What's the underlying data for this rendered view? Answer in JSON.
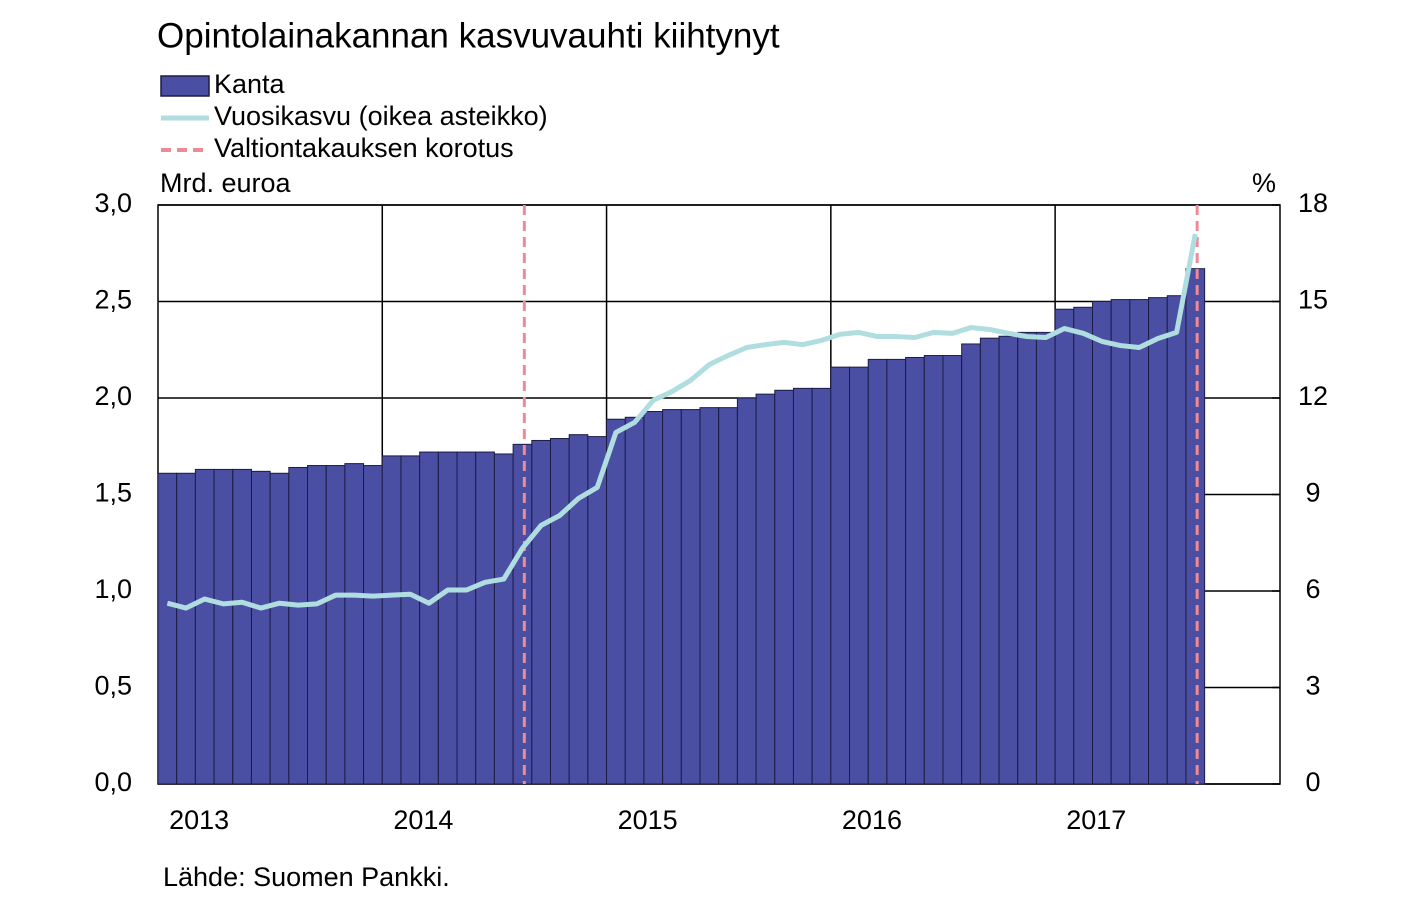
{
  "chart_data": {
    "type": "bar_line",
    "title": "Opintolainakannan kasvuvauhti kiihtynyt",
    "y_label": "Mrd. euroa",
    "y2_label": "%",
    "source": "Lähde: Suomen Pankki.",
    "categories": [
      null,
      null,
      "2013",
      null,
      null,
      null,
      null,
      null,
      null,
      null,
      null,
      null,
      null,
      null,
      "2014",
      null,
      null,
      null,
      null,
      null,
      null,
      null,
      null,
      null,
      null,
      null,
      "2015",
      null,
      null,
      null,
      null,
      null,
      null,
      null,
      null,
      null,
      null,
      null,
      "2016",
      null,
      null,
      null,
      null,
      null,
      null,
      null,
      null,
      null,
      null,
      null,
      "2017",
      null,
      null,
      null,
      null,
      null
    ],
    "series": [
      {
        "name": "Kanta",
        "type": "bar",
        "color": "#4b4fa3",
        "values": [
          1.61,
          1.61,
          1.63,
          1.63,
          1.63,
          1.62,
          1.61,
          1.64,
          1.65,
          1.65,
          1.66,
          1.65,
          1.7,
          1.7,
          1.72,
          1.72,
          1.72,
          1.72,
          1.71,
          1.76,
          1.78,
          1.79,
          1.81,
          1.8,
          1.89,
          1.9,
          1.93,
          1.94,
          1.94,
          1.95,
          1.95,
          2.0,
          2.02,
          2.04,
          2.05,
          2.05,
          2.16,
          2.16,
          2.2,
          2.2,
          2.21,
          2.22,
          2.22,
          2.28,
          2.31,
          2.32,
          2.34,
          2.34,
          2.46,
          2.47,
          2.5,
          2.51,
          2.51,
          2.52,
          2.53,
          2.67
        ]
      },
      {
        "name": "Vuosikasvu (oikea asteikko)",
        "type": "line",
        "axis": "y2",
        "color": "#b0dde0",
        "values": [
          5.62,
          5.47,
          5.75,
          5.6,
          5.65,
          5.47,
          5.62,
          5.56,
          5.6,
          5.87,
          5.87,
          5.84,
          5.87,
          5.9,
          5.62,
          6.03,
          6.03,
          6.27,
          6.37,
          7.33,
          8.04,
          8.35,
          8.88,
          9.22,
          10.93,
          11.24,
          11.93,
          12.2,
          12.55,
          13.04,
          13.32,
          13.57,
          13.66,
          13.73,
          13.66,
          13.79,
          13.98,
          14.04,
          13.91,
          13.91,
          13.88,
          14.04,
          14.01,
          14.19,
          14.13,
          14.01,
          13.91,
          13.88,
          14.16,
          14.01,
          13.76,
          13.63,
          13.57,
          13.85,
          14.04,
          17.1
        ]
      },
      {
        "name": "Valtiontakauksen korotus",
        "type": "vline",
        "color": "#ee8a94",
        "category_indices": [
          19,
          55
        ]
      }
    ],
    "ylim": [
      0,
      3
    ],
    "yticks": [
      {
        "value": 0,
        "label": "0,0"
      },
      {
        "value": 0.5,
        "label": "0,5"
      },
      {
        "value": 1,
        "label": "1,0"
      },
      {
        "value": 1.5,
        "label": "1,5"
      },
      {
        "value": 2,
        "label": "2,0"
      },
      {
        "value": 2.5,
        "label": "2,5"
      },
      {
        "value": 3,
        "label": "3,0"
      }
    ],
    "y2lim": [
      0,
      18
    ],
    "y2ticks": [
      0,
      3,
      6,
      9,
      12,
      15,
      18
    ],
    "grid": true
  }
}
